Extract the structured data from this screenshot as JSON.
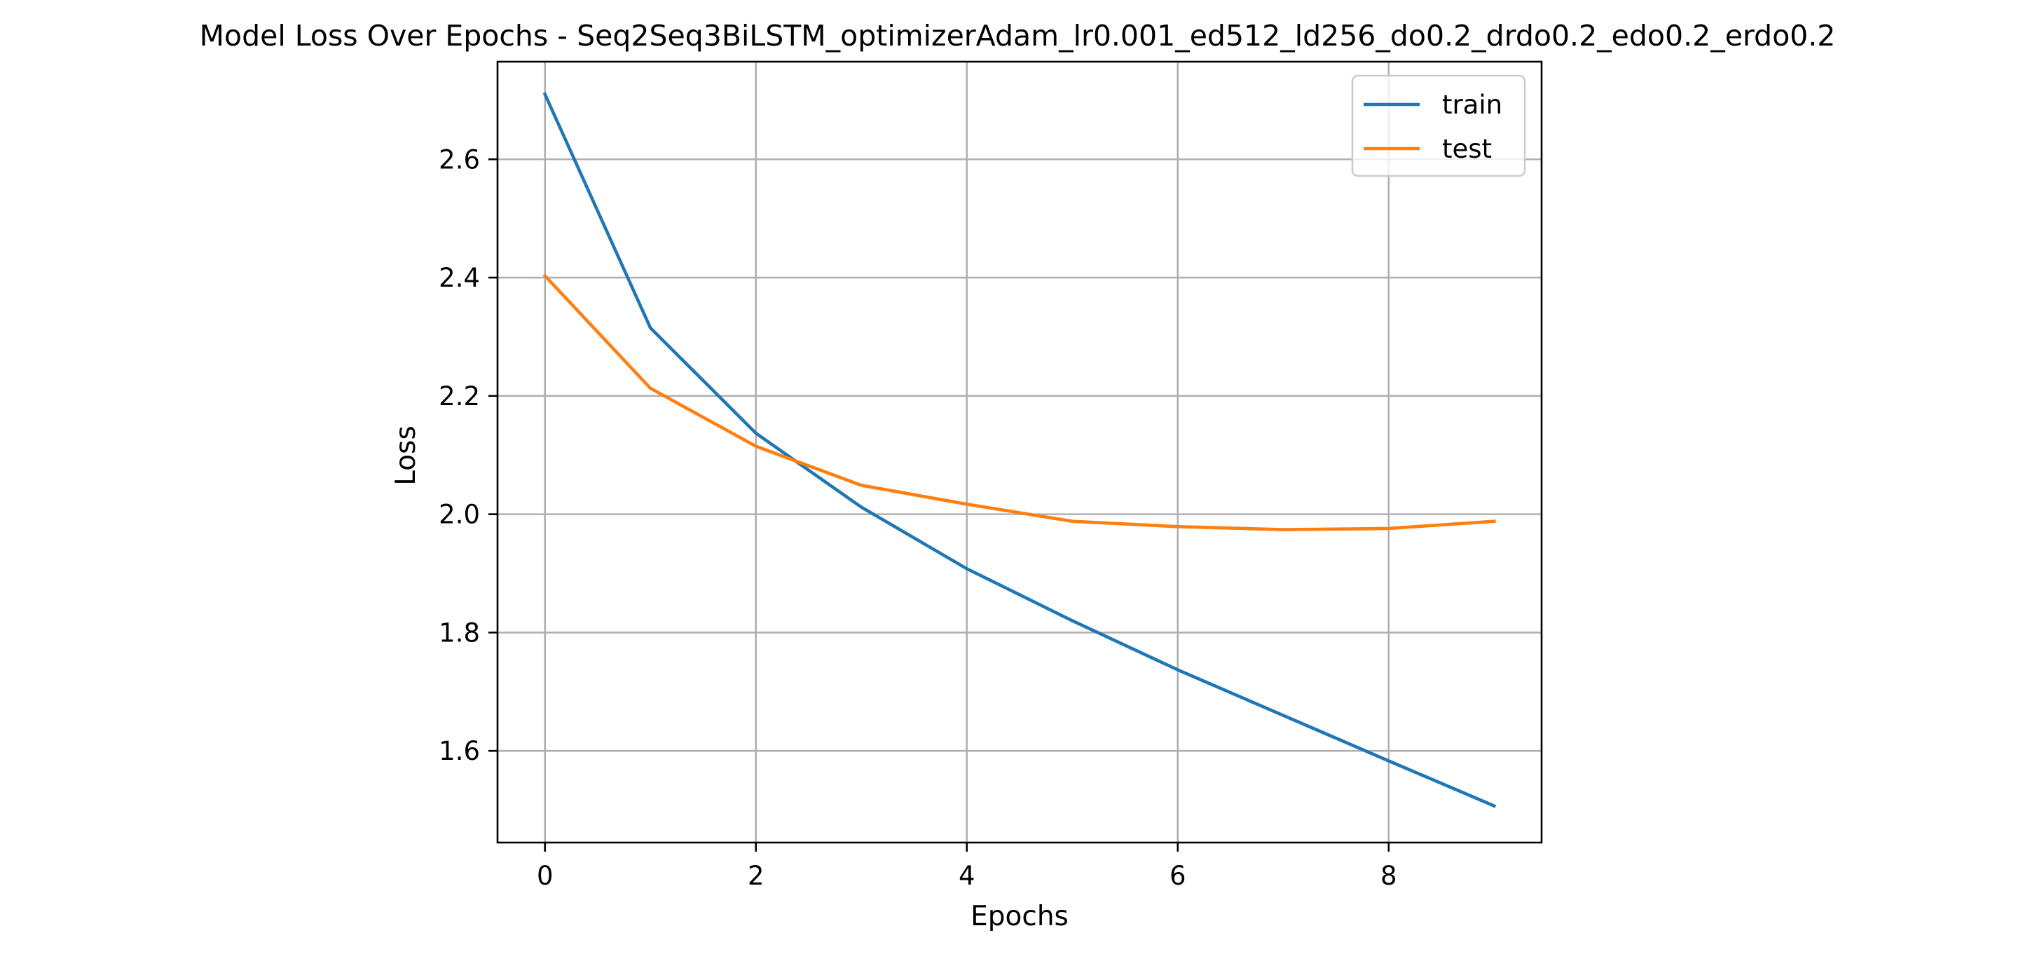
{
  "chart_data": {
    "type": "line",
    "title": "Model Loss Over Epochs - Seq2Seq3BiLSTM_optimizerAdam_lr0.001_ed512_ld256_do0.2_drdo0.2_edo0.2_erdo0.2",
    "xlabel": "Epochs",
    "ylabel": "Loss",
    "x": [
      0,
      1,
      2,
      3,
      4,
      5,
      6,
      7,
      8,
      9
    ],
    "xlim": [
      -0.45,
      9.45
    ],
    "ylim": [
      1.445,
      2.765
    ],
    "xticks": [
      0,
      2,
      4,
      6,
      8
    ],
    "yticks": [
      1.6,
      1.8,
      2.0,
      2.2,
      2.4,
      2.6
    ],
    "xtick_labels": [
      "0",
      "2",
      "4",
      "6",
      "8"
    ],
    "ytick_labels": [
      "1.6",
      "1.8",
      "2.0",
      "2.2",
      "2.4",
      "2.6"
    ],
    "grid": true,
    "legend_position": "top-right",
    "series": [
      {
        "name": "train",
        "color": "#1f77b4",
        "values": [
          2.71,
          2.315,
          2.137,
          2.012,
          1.908,
          1.82,
          1.737,
          1.66,
          1.583,
          1.507
        ]
      },
      {
        "name": "test",
        "color": "#ff7f0e",
        "values": [
          2.403,
          2.213,
          2.115,
          2.049,
          2.017,
          1.988,
          1.979,
          1.974,
          1.976,
          1.988
        ]
      }
    ]
  }
}
